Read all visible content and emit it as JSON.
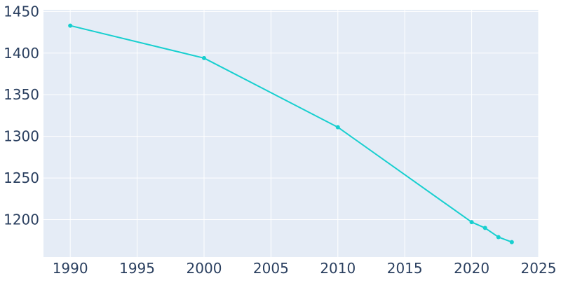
{
  "chart_data": {
    "type": "line",
    "title": "",
    "xlabel": "",
    "ylabel": "",
    "xlim": [
      1988,
      2025
    ],
    "ylim": [
      1155,
      1452
    ],
    "x_ticks": [
      1990,
      1995,
      2000,
      2005,
      2010,
      2015,
      2020,
      2025
    ],
    "y_ticks": [
      1200,
      1250,
      1300,
      1350,
      1400,
      1450
    ],
    "grid": true,
    "legend": "none",
    "colors": {
      "plot_background": "#E5ECF6",
      "grid": "#FFFFFF",
      "line": "#17CFCF",
      "tick_text": "#2A3F5F"
    },
    "series": [
      {
        "x": [
          1990,
          2000,
          2010,
          2020,
          2021,
          2022,
          2023
        ],
        "y": [
          1433,
          1394,
          1311,
          1197,
          1190,
          1179,
          1173
        ]
      }
    ]
  }
}
